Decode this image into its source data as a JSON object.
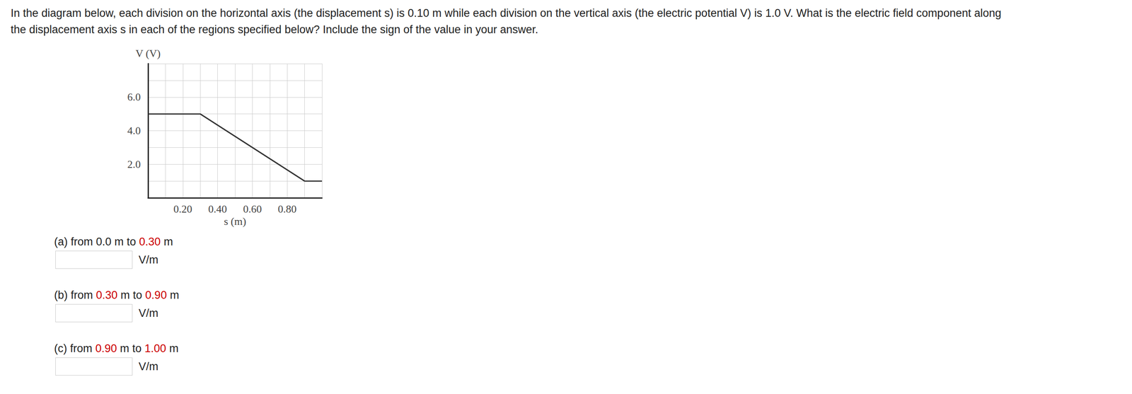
{
  "question": [
    "In the diagram below, each division on the horizontal axis (the displacement s) is 0.10 m while each division on the vertical axis (the electric potential V) is 1.0 V. What is the electric field component along",
    "the displacement axis s in each of the regions specified below? Include the sign of the value in your answer."
  ],
  "parts": [
    {
      "segments": [
        {
          "text": "(a) from 0.0 m to ",
          "highlight": false
        },
        {
          "text": "0.30",
          "highlight": true
        },
        {
          "text": " m",
          "highlight": false
        }
      ],
      "unit": "V/m"
    },
    {
      "segments": [
        {
          "text": "(b) from ",
          "highlight": false
        },
        {
          "text": "0.30",
          "highlight": true
        },
        {
          "text": " m to ",
          "highlight": false
        },
        {
          "text": "0.90",
          "highlight": true
        },
        {
          "text": " m",
          "highlight": false
        }
      ],
      "unit": "V/m"
    },
    {
      "segments": [
        {
          "text": "(c) from ",
          "highlight": false
        },
        {
          "text": "0.90",
          "highlight": true
        },
        {
          "text": " m to ",
          "highlight": false
        },
        {
          "text": "1.00",
          "highlight": true
        },
        {
          "text": " m",
          "highlight": false
        }
      ],
      "unit": "V/m"
    }
  ],
  "chart_data": {
    "type": "line",
    "x_label": "s (m)",
    "y_label": "V (V)",
    "x": [
      0,
      0.3,
      0.9,
      1.0
    ],
    "values": [
      5,
      5,
      1,
      1
    ],
    "color": "#333333",
    "marker": "none",
    "xlim": [
      0,
      1.0
    ],
    "ylim": [
      0,
      8
    ],
    "xticks": [
      {
        "value": 0.2,
        "label": "0.20"
      },
      {
        "value": 0.4,
        "label": "0.40"
      },
      {
        "value": 0.6,
        "label": "0.60"
      },
      {
        "value": 0.8,
        "label": "0.80"
      }
    ],
    "yticks": [
      {
        "value": 2,
        "label": "2.0"
      },
      {
        "value": 4,
        "label": "4.0"
      },
      {
        "value": 6,
        "label": "6.0"
      }
    ],
    "grid": true
  }
}
